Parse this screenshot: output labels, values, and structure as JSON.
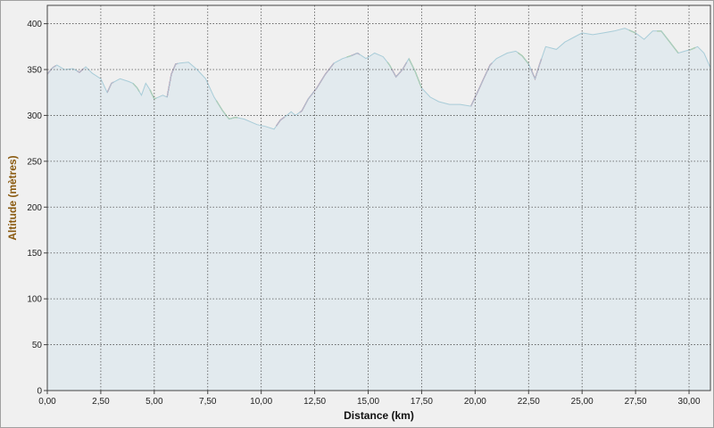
{
  "chart_data": {
    "type": "area",
    "xlabel": "Distance (km)",
    "ylabel": "Altitude (mètres)",
    "xlim": [
      0,
      31
    ],
    "ylim": [
      0,
      420
    ],
    "x_ticks": [
      0,
      2.5,
      5,
      7.5,
      10,
      12.5,
      15,
      17.5,
      20,
      22.5,
      25,
      27.5,
      30
    ],
    "x_tick_labels": [
      "0,00",
      "2,50",
      "5,00",
      "7,50",
      "10,00",
      "12,50",
      "15,00",
      "17,50",
      "20,00",
      "22,50",
      "25,00",
      "27,50",
      "30,00"
    ],
    "y_ticks": [
      0,
      50,
      100,
      150,
      200,
      250,
      300,
      350,
      400
    ],
    "y_tick_labels": [
      "0",
      "50",
      "100",
      "150",
      "200",
      "250",
      "300",
      "350",
      "400"
    ],
    "grid": true,
    "colors": {
      "fill": "#e2eaee",
      "line": "#a8ccd8",
      "uphill": "#f0b8c8",
      "uphill_line": "#c03060",
      "downhill": "#d8e4b8",
      "downhill_line": "#90b820",
      "grid": "#555555"
    },
    "series": [
      {
        "x": [
          0,
          0.25,
          0.45,
          0.8,
          1.2,
          1.5,
          1.8,
          2.1,
          2.5,
          2.8,
          3.0,
          3.4,
          3.8,
          4.0,
          4.2,
          4.4,
          4.6,
          4.8,
          5.0,
          5.2,
          5.4,
          5.6,
          5.8,
          6.0,
          6.2,
          6.6,
          7.0,
          7.4,
          7.8,
          8.2,
          8.5,
          8.8,
          9.2,
          9.8,
          10.2,
          10.6,
          10.9,
          11.2,
          11.4,
          11.6,
          11.9,
          12.2,
          12.6,
          13.0,
          13.4,
          13.8,
          14.2,
          14.5,
          14.9,
          15.3,
          15.7,
          16.0,
          16.3,
          16.6,
          16.9,
          17.2,
          17.5,
          17.9,
          18.3,
          18.8,
          19.3,
          19.8,
          20.1,
          20.4,
          20.7,
          21.0,
          21.5,
          21.9,
          22.2,
          22.5,
          22.8,
          23.0,
          23.3,
          23.8,
          24.2,
          24.6,
          25.0,
          25.5,
          26.0,
          26.5,
          27.0,
          27.5,
          27.9,
          28.3,
          28.7,
          29.1,
          29.5,
          29.8,
          30.1,
          30.4,
          30.7,
          31.0
        ],
        "y": [
          345,
          352,
          355,
          350,
          351,
          347,
          353,
          346,
          340,
          325,
          335,
          340,
          337,
          335,
          330,
          322,
          335,
          328,
          318,
          320,
          322,
          320,
          345,
          356,
          357,
          358,
          350,
          340,
          320,
          305,
          296,
          298,
          296,
          290,
          288,
          285,
          295,
          300,
          304,
          300,
          305,
          318,
          330,
          345,
          357,
          362,
          365,
          368,
          362,
          368,
          364,
          355,
          342,
          350,
          362,
          348,
          330,
          320,
          315,
          312,
          312,
          310,
          325,
          340,
          355,
          362,
          368,
          370,
          365,
          356,
          340,
          355,
          375,
          372,
          380,
          385,
          390,
          388,
          390,
          392,
          395,
          390,
          383,
          392,
          392,
          380,
          368,
          370,
          372,
          375,
          368,
          352
        ]
      }
    ],
    "uphill_segments": [
      [
        0,
        0.4
      ],
      [
        1.4,
        1.7
      ],
      [
        2.8,
        3.1
      ],
      [
        5.6,
        6.1
      ],
      [
        10.7,
        11.1
      ],
      [
        11.8,
        13.4
      ],
      [
        14.2,
        14.6
      ],
      [
        16.1,
        16.8
      ],
      [
        19.8,
        20.8
      ],
      [
        22.6,
        23.1
      ]
    ],
    "downhill_segments": [
      [
        4.0,
        4.3
      ],
      [
        4.8,
        5.1
      ],
      [
        7.9,
        8.9
      ],
      [
        14.0,
        14.2
      ],
      [
        15.9,
        16.1
      ],
      [
        16.9,
        17.5
      ],
      [
        22.0,
        22.5
      ],
      [
        27.2,
        27.5
      ],
      [
        28.5,
        29.5
      ],
      [
        30.0,
        30.3
      ]
    ]
  }
}
